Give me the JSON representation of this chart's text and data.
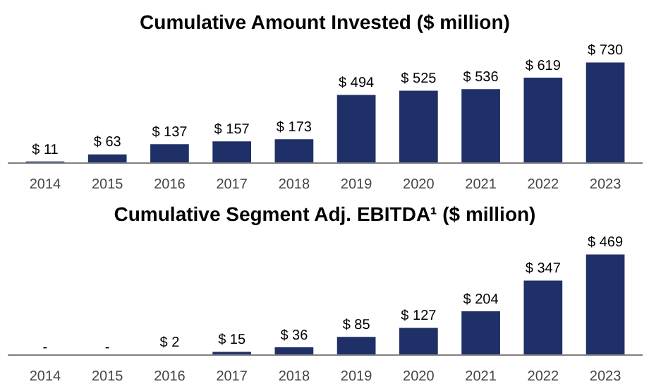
{
  "chart_data": [
    {
      "type": "bar",
      "title": "Cumulative Amount Invested ($ million)",
      "categories": [
        "2014",
        "2015",
        "2016",
        "2017",
        "2018",
        "2019",
        "2020",
        "2021",
        "2022",
        "2023"
      ],
      "values": [
        11,
        63,
        137,
        157,
        173,
        494,
        525,
        536,
        619,
        730
      ],
      "value_labels": [
        "$ 11",
        "$ 63",
        "$ 137",
        "$ 157",
        "$ 173",
        "$ 494",
        "$ 525",
        "$ 536",
        "$ 619",
        "$ 730"
      ],
      "color": "#1f3068",
      "grid": false
    },
    {
      "type": "bar",
      "title": "Cumulative Segment Adj. EBITDA¹ ($ million)",
      "categories": [
        "2014",
        "2015",
        "2016",
        "2017",
        "2018",
        "2019",
        "2020",
        "2021",
        "2022",
        "2023"
      ],
      "values": [
        0,
        0,
        2,
        15,
        36,
        85,
        127,
        204,
        347,
        469
      ],
      "value_labels": [
        "-",
        "-",
        "$ 2",
        "$ 15",
        "$ 36",
        "$ 85",
        "$ 127",
        "$ 204",
        "$ 347",
        "$ 469"
      ],
      "color": "#1f3068",
      "grid": false
    }
  ]
}
